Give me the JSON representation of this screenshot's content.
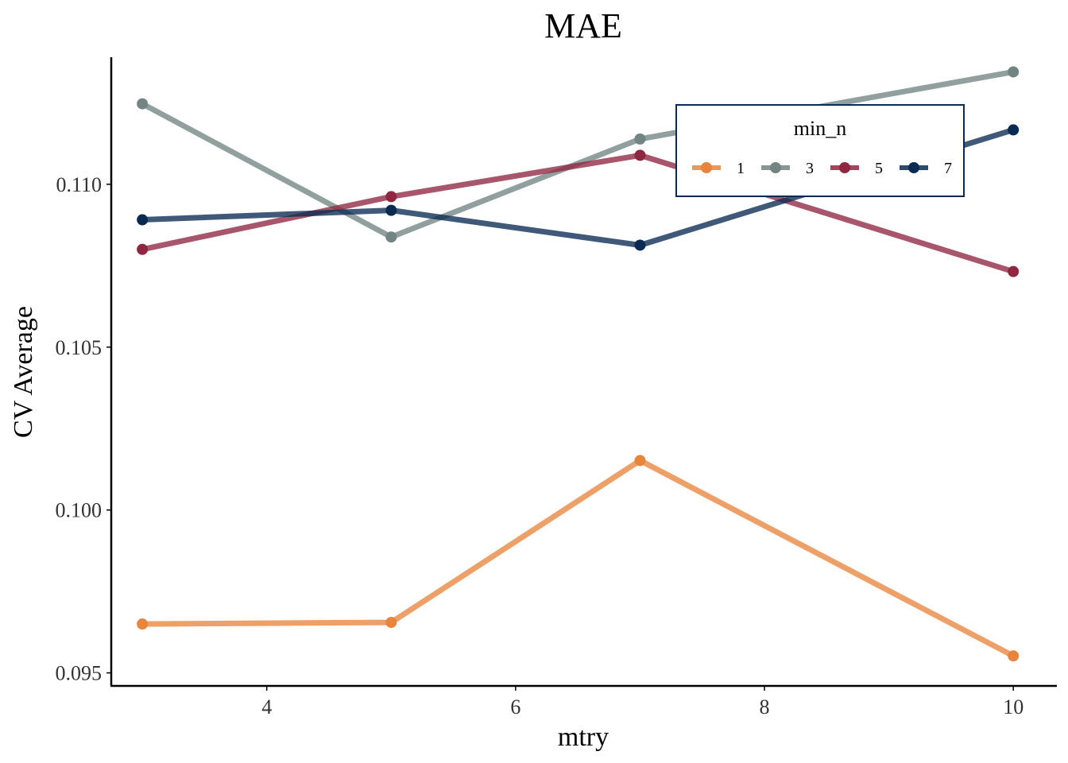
{
  "chart_data": {
    "type": "line",
    "title": "MAE",
    "xlabel": "mtry",
    "ylabel": "CV Average",
    "x": [
      3,
      5,
      7,
      10
    ],
    "xlim": [
      2.75,
      10.35
    ],
    "ylim": [
      0.0946,
      0.1139
    ],
    "xticks": [
      4,
      6,
      8,
      10
    ],
    "xtick_labels": [
      "4",
      "6",
      "8",
      "10"
    ],
    "yticks": [
      0.095,
      0.1,
      0.105,
      0.11
    ],
    "ytick_labels": [
      "0.095",
      "0.100",
      "0.105",
      "0.110"
    ],
    "grid": false,
    "legend": {
      "title": "min_n",
      "position": "top-right inside"
    },
    "series": [
      {
        "name": "1",
        "color": "#E8853D",
        "values": [
          0.0965,
          0.09655,
          0.10152,
          0.09552
        ]
      },
      {
        "name": "3",
        "color": "#728483",
        "values": [
          0.11247,
          0.10838,
          0.11139,
          0.11345
        ]
      },
      {
        "name": "5",
        "color": "#8F2741",
        "values": [
          0.108,
          0.10962,
          0.11089,
          0.10732
        ]
      },
      {
        "name": "7",
        "color": "#0A2A52",
        "values": [
          0.10891,
          0.1092,
          0.10813,
          0.11167
        ]
      }
    ]
  }
}
